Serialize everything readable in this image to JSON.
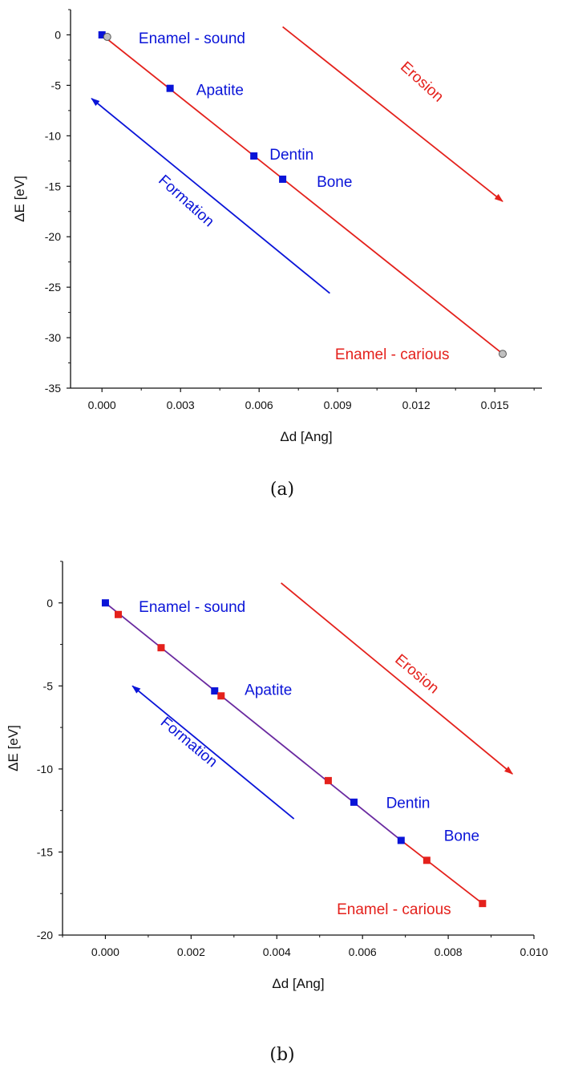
{
  "colors": {
    "blue": "#0a14d8",
    "red": "#e4211c",
    "purple": "#6a2aa0",
    "grey_marker": "#c0c0c0",
    "axis": "#111111"
  },
  "chart_data": [
    {
      "type": "scatter",
      "caption": "(a)",
      "xlabel": "Δd [Ang]",
      "ylabel": "ΔE [eV]",
      "xlim": [
        -0.0012,
        0.0168
      ],
      "ylim": [
        -35,
        2.5
      ],
      "xticks": [
        0,
        0.003,
        0.006,
        0.009,
        0.012,
        0.015
      ],
      "xtick_labels": [
        "0.000",
        "0.003",
        "0.006",
        "0.009",
        "0.012",
        "0.015"
      ],
      "yticks": [
        0,
        -5,
        -10,
        -15,
        -20,
        -25,
        -30,
        -35
      ],
      "ytick_labels": [
        "0",
        "-5",
        "-10",
        "-15",
        "-20",
        "-25",
        "-30",
        "-35"
      ],
      "fit_lines": [
        {
          "x": [
            0,
            0.0153
          ],
          "y": [
            0,
            -31.6
          ],
          "color": "red"
        }
      ],
      "series": [
        {
          "marker": "square",
          "color": "blue",
          "points": [
            {
              "x": 0,
              "y": 0,
              "label": "Enamel - sound"
            },
            {
              "x": 0.0026,
              "y": -5.3,
              "label": "Apatite"
            },
            {
              "x": 0.0058,
              "y": -12.0,
              "label": "Dentin"
            },
            {
              "x": 0.0069,
              "y": -14.3,
              "label": "Bone"
            }
          ]
        },
        {
          "marker": "circle",
          "color": "grey_marker",
          "points": [
            {
              "x": 0.0002,
              "y": -0.2
            },
            {
              "x": 0.0153,
              "y": -31.6
            }
          ]
        }
      ],
      "point_labels": [
        {
          "text": "Enamel - sound",
          "x": 0.0014,
          "y": -0.3,
          "color": "blue"
        },
        {
          "text": "Apatite",
          "x": 0.0036,
          "y": -5.4,
          "color": "blue"
        },
        {
          "text": "Dentin",
          "x": 0.0064,
          "y": -11.8,
          "color": "blue"
        },
        {
          "text": "Bone",
          "x": 0.0082,
          "y": -14.5,
          "color": "blue"
        },
        {
          "text": "Enamel - carious",
          "x": 0.0089,
          "y": -31.6,
          "color": "red"
        }
      ],
      "arrows": [
        {
          "label": "Erosion",
          "color": "red",
          "from": [
            0.0069,
            0.8
          ],
          "to": [
            0.0153,
            -16.5
          ],
          "label_at": [
            0.0121,
            -5.0
          ],
          "label_angle": 42
        },
        {
          "label": "Formation",
          "color": "blue",
          "from": [
            0.0087,
            -25.6
          ],
          "to": [
            -0.0004,
            -6.3
          ],
          "label_at": [
            0.0031,
            -16.8
          ],
          "label_angle": 42
        }
      ]
    },
    {
      "type": "scatter",
      "caption": "(b)",
      "xlabel": "Δd [Ang]",
      "ylabel": "ΔE [eV]",
      "xlim": [
        -0.001,
        0.01
      ],
      "ylim": [
        -20,
        2.5
      ],
      "xticks": [
        0,
        0.002,
        0.004,
        0.006,
        0.008,
        0.01
      ],
      "xtick_labels": [
        "0.000",
        "0.002",
        "0.004",
        "0.006",
        "0.008",
        "0.010"
      ],
      "yticks": [
        0,
        -5,
        -10,
        -15,
        -20
      ],
      "ytick_labels": [
        "0",
        "-5",
        "-10",
        "-15",
        "-20"
      ],
      "fit_lines": [
        {
          "x": [
            0,
            0.0069
          ],
          "y": [
            0,
            -14.3
          ],
          "color": "purple"
        },
        {
          "x": [
            0.0069,
            0.0088
          ],
          "y": [
            -14.3,
            -18.1
          ],
          "color": "red"
        }
      ],
      "series": [
        {
          "marker": "square",
          "color": "blue",
          "points": [
            {
              "x": 0,
              "y": 0,
              "label": "Enamel - sound"
            },
            {
              "x": 0.00255,
              "y": -5.3,
              "label": "Apatite"
            },
            {
              "x": 0.0058,
              "y": -12.0,
              "label": "Dentin"
            },
            {
              "x": 0.0069,
              "y": -14.3,
              "label": "Bone"
            }
          ]
        },
        {
          "marker": "square",
          "color": "red",
          "points": [
            {
              "x": 0.0003,
              "y": -0.7
            },
            {
              "x": 0.0013,
              "y": -2.7
            },
            {
              "x": 0.0027,
              "y": -5.6
            },
            {
              "x": 0.0052,
              "y": -10.7
            },
            {
              "x": 0.0075,
              "y": -15.5
            },
            {
              "x": 0.0088,
              "y": -18.1
            }
          ]
        }
      ],
      "point_labels": [
        {
          "text": "Enamel - sound",
          "x": 0.00078,
          "y": -0.2,
          "color": "blue"
        },
        {
          "text": "Apatite",
          "x": 0.00325,
          "y": -5.2,
          "color": "blue"
        },
        {
          "text": "Dentin",
          "x": 0.00655,
          "y": -12.0,
          "color": "blue"
        },
        {
          "text": "Bone",
          "x": 0.0079,
          "y": -14.0,
          "color": "blue"
        },
        {
          "text": "Enamel - carious",
          "x": 0.0054,
          "y": -18.4,
          "color": "red"
        }
      ],
      "arrows": [
        {
          "label": "Erosion",
          "color": "red",
          "from": [
            0.0041,
            1.2
          ],
          "to": [
            0.0095,
            -10.3
          ],
          "label_at": [
            0.0072,
            -4.5
          ],
          "label_angle": 40
        },
        {
          "label": "Formation",
          "color": "blue",
          "from": [
            0.0044,
            -13.0
          ],
          "to": [
            0.00063,
            -5.0
          ],
          "label_at": [
            0.00188,
            -8.6
          ],
          "label_angle": 40
        }
      ]
    }
  ]
}
